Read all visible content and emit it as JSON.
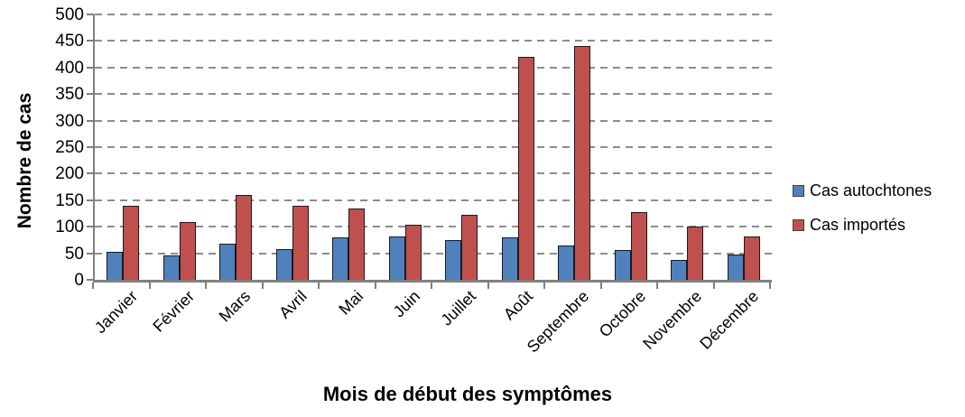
{
  "chart_data": {
    "type": "bar",
    "title": "",
    "xlabel": "Mois de début des symptômes",
    "ylabel": "Nombre de cas",
    "categories": [
      "Janvier",
      "Février",
      "Mars",
      "Avril",
      "Mai",
      "Juin",
      "Juillet",
      "Août",
      "Septembre",
      "Octobre",
      "Novembre",
      "Décembre"
    ],
    "series": [
      {
        "name": "Cas autochtones",
        "color": "#4F81BD",
        "values": [
          52,
          46,
          68,
          57,
          80,
          82,
          74,
          80,
          65,
          56,
          38,
          48
        ]
      },
      {
        "name": "Cas importés",
        "color": "#C0504D",
        "values": [
          140,
          109,
          160,
          139,
          134,
          104,
          122,
          420,
          441,
          127,
          101,
          82
        ]
      }
    ],
    "ylim": [
      0,
      500
    ],
    "ytick_step": 50,
    "grid": "horizontal-dashed",
    "legend_position": "right"
  },
  "colors": {
    "axis": "#808080",
    "gridline": "#8c8c8c",
    "bar_outline": "#1a1a1a",
    "text": "#000000",
    "background": "#ffffff"
  }
}
